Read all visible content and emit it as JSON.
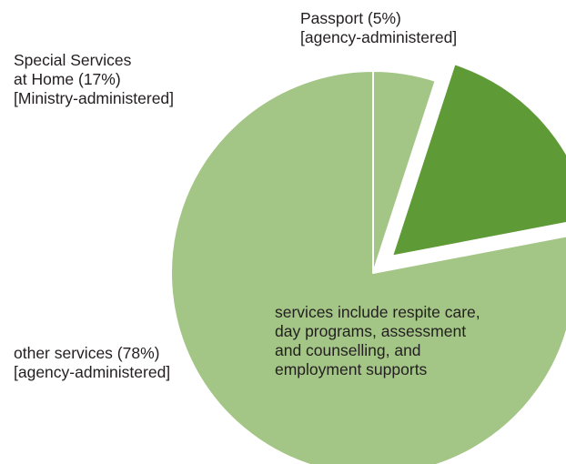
{
  "chart_data": {
    "type": "pie",
    "slices": [
      {
        "label": "Passport",
        "value": 5,
        "color": "#a3c585",
        "exploded": false,
        "label_lines": [
          "Passport (5%)",
          "[agency-administered]"
        ]
      },
      {
        "label": "Special Services at Home",
        "value": 17,
        "color": "#5e9a36",
        "exploded": true,
        "label_lines": [
          "Special Services",
          "at Home (17%)",
          "[Ministry-administered]"
        ]
      },
      {
        "label": "other services",
        "value": 78,
        "color": "#a3c585",
        "exploded": false,
        "label_lines": [
          "other services (78%)",
          "[agency-administered]"
        ]
      }
    ],
    "annotation": {
      "lines": [
        "services include respite care,",
        "day programs, assessment",
        "and counselling, and",
        "employment supports"
      ]
    }
  }
}
